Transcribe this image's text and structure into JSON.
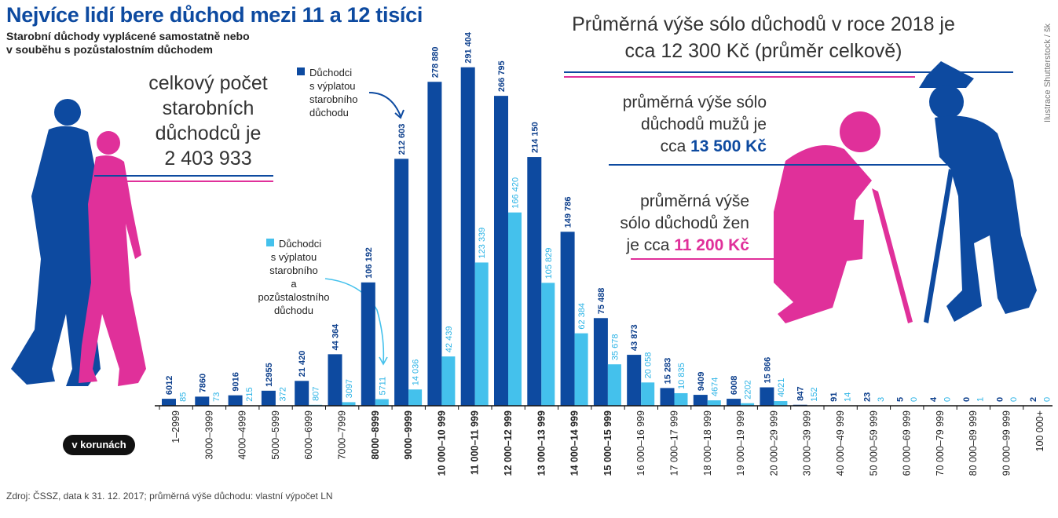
{
  "title": "Nejvíce lidí bere důchod mezi 11 a 12 tisíci",
  "subtitle_line1": "Starobní důchody vyplácené samostatně nebo",
  "subtitle_line2": "v souběhu s pozůstalostním důchodem",
  "avg_total_line1": "Průměrná výše sólo důchodů v roce 2018 je",
  "avg_total_line2": "cca 12 300 Kč (průměr celkově)",
  "avg_men_text1": "průměrná výše sólo",
  "avg_men_text2": "důchodů mužů je",
  "avg_men_prefix": "cca ",
  "avg_men_value": "13 500 Kč",
  "avg_women_text1": "průměrná výše",
  "avg_women_text2": "sólo důchodů žen",
  "avg_women_prefix": "je cca ",
  "avg_women_value": "11 200 Kč",
  "total_line1": "celkový počet",
  "total_line2": "starobních",
  "total_line3": "důchodců je",
  "total_value": "2 403 933",
  "legend_solo_1": "Důchodci",
  "legend_solo_2": "s výplatou",
  "legend_solo_3": "starobního",
  "legend_solo_4": "důchodu",
  "legend_combined_1": "Důchodci",
  "legend_combined_2": "s výplatou",
  "legend_combined_3": "starobního",
  "legend_combined_4": "a pozůstalostního",
  "legend_combined_5": "důchodu",
  "unit_label": "v korunách",
  "source": "Zdroj: ČSSZ, data k 31. 12. 2017; průměrná výše důchodu: vlastní výpočet LN",
  "credit": "Ilustrace Shutterstock / šk",
  "colors": {
    "solo": "#0d4aa0",
    "combined": "#44c1ec",
    "men": "#0d4aa0",
    "women": "#e0309a"
  },
  "chart_data": {
    "type": "bar",
    "title": "Nejvíce lidí bere důchod mezi 11 a 12 tisíci",
    "xlabel": "v korunách",
    "ylabel": "",
    "categories": [
      "1–2999",
      "3000–3999",
      "4000–4999",
      "5000–5999",
      "6000–6999",
      "7000–7999",
      "8000–8999",
      "9000–9999",
      "10 000–10 999",
      "11 000–11 999",
      "12 000–12 999",
      "13 000–13 999",
      "14 000–14 999",
      "15 000–15 999",
      "16 000–16 999",
      "17 000–17 999",
      "18 000–18 999",
      "19 000–19 999",
      "20 000–29 999",
      "30 000–39 999",
      "40 000–49 999",
      "50 000–59 999",
      "60 000–69 999",
      "70 000–79 999",
      "80 000–89 999",
      "90 000–99 999",
      "100 000+"
    ],
    "bold_categories": [
      "8000–8999",
      "9000–9999",
      "10 000–10 999",
      "11 000–11 999",
      "12 000–12 999",
      "13 000–13 999",
      "14 000–14 999",
      "15 000–15 999"
    ],
    "series": [
      {
        "name": "Důchodci s výplatou starobního důchodu",
        "values": [
          6012,
          7860,
          9016,
          12955,
          21420,
          44364,
          106192,
          212603,
          278880,
          291404,
          266795,
          214150,
          149786,
          75488,
          43873,
          15283,
          9409,
          6008,
          15866,
          847,
          91,
          23,
          5,
          4,
          0,
          0,
          2
        ],
        "labels": [
          "6012",
          "7860",
          "9016",
          "12955",
          "21 420",
          "44 364",
          "106 192",
          "212 603",
          "278 880",
          "291 404",
          "266 795",
          "214 150",
          "149 786",
          "75 488",
          "43 873",
          "15 283",
          "9409",
          "6008",
          "15 866",
          "847",
          "91",
          "23",
          "5",
          "4",
          "0",
          "0",
          "2"
        ]
      },
      {
        "name": "Důchodci s výplatou starobního a pozůstalostního důchodu",
        "values": [
          85,
          73,
          215,
          372,
          807,
          3097,
          5711,
          14036,
          42439,
          123339,
          166420,
          105829,
          62384,
          35678,
          20058,
          10835,
          4674,
          2202,
          4021,
          152,
          14,
          3,
          0,
          0,
          1,
          0,
          0
        ],
        "labels": [
          "85",
          "73",
          "215",
          "372",
          "807",
          "3097",
          "5711",
          "14 036",
          "42 439",
          "123 339",
          "166 420",
          "105 829",
          "62 384",
          "35 678",
          "20 058",
          "10 835",
          "4674",
          "2202",
          "4021",
          "152",
          "14",
          "3",
          "0",
          "0",
          "1",
          "0",
          "0"
        ]
      }
    ],
    "ylim": [
      0,
      300000
    ],
    "grid": false
  }
}
